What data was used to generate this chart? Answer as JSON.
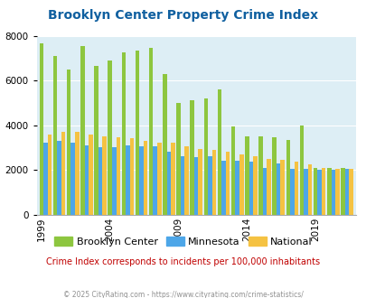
{
  "title": "Brooklyn Center Property Crime Index",
  "subtitle": "Crime Index corresponds to incidents per 100,000 inhabitants",
  "footer": "© 2025 CityRating.com - https://www.cityrating.com/crime-statistics/",
  "years": [
    1999,
    2000,
    2001,
    2002,
    2003,
    2004,
    2005,
    2006,
    2007,
    2008,
    2009,
    2010,
    2011,
    2012,
    2013,
    2014,
    2015,
    2016,
    2017,
    2018,
    2019,
    2020,
    2021
  ],
  "brooklyn_center": [
    7650,
    7100,
    6500,
    7550,
    6650,
    6900,
    7250,
    7350,
    7450,
    6300,
    5000,
    5100,
    5200,
    5600,
    3950,
    3500,
    3500,
    3450,
    3350,
    4000,
    2100,
    2100,
    2100
  ],
  "minnesota": [
    3200,
    3300,
    3200,
    3100,
    3000,
    3000,
    3100,
    3050,
    3050,
    2800,
    2600,
    2550,
    2600,
    2400,
    2400,
    2350,
    2100,
    2300,
    2050,
    2050,
    2000,
    2000,
    2050
  ],
  "national": [
    3600,
    3700,
    3700,
    3600,
    3500,
    3450,
    3400,
    3300,
    3200,
    3200,
    3050,
    2950,
    2900,
    2800,
    2700,
    2600,
    2500,
    2450,
    2350,
    2250,
    2100,
    2050,
    2050
  ],
  "colors": {
    "brooklyn_center": "#8dc63f",
    "minnesota": "#4da6e8",
    "national": "#f5c242",
    "plot_bg": "#ddeef5"
  },
  "ylim": [
    0,
    8000
  ],
  "yticks": [
    0,
    2000,
    4000,
    6000,
    8000
  ],
  "tick_years": [
    1999,
    2004,
    2009,
    2014,
    2019
  ],
  "title_color": "#1060a0",
  "subtitle_color": "#c00000",
  "footer_color": "#909090"
}
